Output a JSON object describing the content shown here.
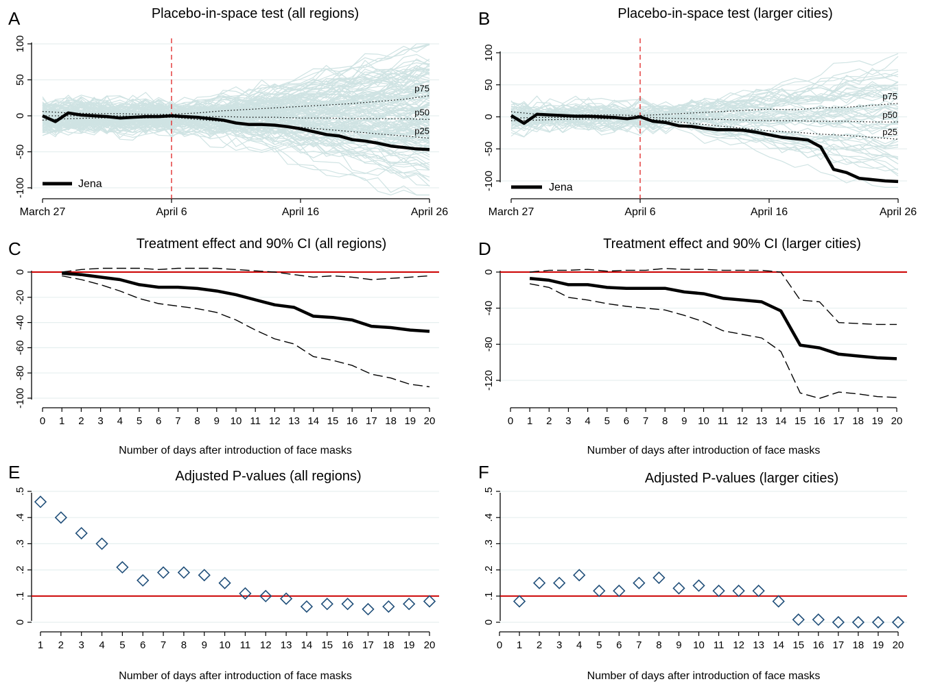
{
  "figure": {
    "colors": {
      "axis": "#000000",
      "grid": "#e6efef",
      "placebo": "#cfe3e3",
      "jena": "#000000",
      "reference_line": "#cc0000",
      "intervention_line": "#e03030",
      "pvalue_marker": "#1f4e79"
    }
  },
  "chart_data": [
    {
      "panel": "A",
      "type": "line",
      "title": "Placebo-in-space test (all regions)",
      "xlabel": "",
      "ylabel": "",
      "xlim": [
        0,
        30
      ],
      "ylim": [
        -110,
        112
      ],
      "x_ticks": [
        {
          "x": 0,
          "label": "March 27"
        },
        {
          "x": 10,
          "label": "April 6"
        },
        {
          "x": 20,
          "label": "April 16"
        },
        {
          "x": 30,
          "label": "April 26"
        }
      ],
      "y_ticks": [
        100,
        50,
        0,
        -50,
        -100
      ],
      "intervention_x": 10,
      "percentile_labels": [
        "p75",
        "p50",
        "p25"
      ],
      "legend": {
        "label": "Jena",
        "position": "bottom-left"
      },
      "placebo_count": 140,
      "placebo_spread_pre": 28,
      "placebo_spread_post": 95,
      "grid": true,
      "series": [
        {
          "name": "Jena",
          "x": [
            0,
            1,
            2,
            3,
            4,
            5,
            6,
            7,
            8,
            9,
            10,
            11,
            12,
            13,
            14,
            15,
            16,
            17,
            18,
            19,
            20,
            21,
            22,
            23,
            24,
            25,
            26,
            27,
            28,
            29,
            30
          ],
          "values": [
            0,
            -8,
            4,
            1,
            0,
            -1,
            -3,
            -2,
            -1,
            -1,
            0,
            -1,
            -2,
            -4,
            -6,
            -10,
            -12,
            -12,
            -13,
            -15,
            -18,
            -22,
            -26,
            -28,
            -33,
            -35,
            -38,
            -42,
            -44,
            -46,
            -47
          ]
        },
        {
          "name": "p75",
          "x": [
            0,
            2,
            4,
            6,
            8,
            10,
            12,
            14,
            16,
            18,
            20,
            22,
            24,
            26,
            28,
            30
          ],
          "values": [
            6,
            4,
            3,
            3,
            2,
            2,
            4,
            7,
            9,
            11,
            13,
            15,
            17,
            20,
            23,
            28
          ]
        },
        {
          "name": "p50",
          "x": [
            0,
            2,
            4,
            6,
            8,
            10,
            12,
            14,
            16,
            18,
            20,
            22,
            24,
            26,
            28,
            30
          ],
          "values": [
            0,
            0,
            0,
            0,
            -1,
            0,
            -1,
            -1,
            -2,
            -2,
            -3,
            -3,
            -4,
            -4,
            -4,
            -5
          ]
        },
        {
          "name": "p25",
          "x": [
            0,
            2,
            4,
            6,
            8,
            10,
            12,
            14,
            16,
            18,
            20,
            22,
            24,
            26,
            28,
            30
          ],
          "values": [
            -6,
            -4,
            -3,
            -3,
            -3,
            -2,
            -5,
            -8,
            -11,
            -14,
            -16,
            -19,
            -22,
            -25,
            -28,
            -31
          ]
        }
      ]
    },
    {
      "panel": "B",
      "type": "line",
      "title": "Placebo-in-space test (larger cities)",
      "xlabel": "",
      "ylabel": "",
      "xlim": [
        0,
        30
      ],
      "ylim": [
        -117,
        112
      ],
      "x_ticks": [
        {
          "x": 0,
          "label": "March 27"
        },
        {
          "x": 10,
          "label": "April 6"
        },
        {
          "x": 20,
          "label": "April 16"
        },
        {
          "x": 30,
          "label": "April 26"
        }
      ],
      "y_ticks": [
        100,
        50,
        0,
        -50,
        -100
      ],
      "intervention_x": 10,
      "percentile_labels": [
        "p75",
        "p50",
        "p25"
      ],
      "legend": {
        "label": "Jena",
        "position": "bottom-left"
      },
      "placebo_count": 60,
      "placebo_spread_pre": 30,
      "placebo_spread_post": 105,
      "grid": true,
      "series": [
        {
          "name": "Jena",
          "x": [
            0,
            1,
            2,
            3,
            4,
            5,
            6,
            7,
            8,
            9,
            10,
            11,
            12,
            13,
            14,
            15,
            16,
            17,
            18,
            19,
            20,
            21,
            22,
            23,
            24,
            25,
            26,
            27,
            28,
            29,
            30
          ],
          "values": [
            2,
            -10,
            4,
            3,
            2,
            1,
            1,
            0,
            -1,
            -3,
            0,
            -7,
            -9,
            -14,
            -15,
            -18,
            -20,
            -20,
            -21,
            -24,
            -28,
            -32,
            -34,
            -36,
            -47,
            -82,
            -87,
            -96,
            -98,
            -100,
            -101
          ]
        },
        {
          "name": "p75",
          "x": [
            0,
            2,
            4,
            6,
            8,
            10,
            12,
            14,
            16,
            18,
            20,
            22,
            24,
            26,
            28,
            30
          ],
          "values": [
            8,
            4,
            3,
            3,
            3,
            2,
            4,
            6,
            8,
            10,
            12,
            11,
            14,
            15,
            18,
            21
          ]
        },
        {
          "name": "p50",
          "x": [
            0,
            2,
            4,
            6,
            8,
            10,
            12,
            14,
            16,
            18,
            20,
            22,
            24,
            26,
            28,
            30
          ],
          "values": [
            -2,
            -1,
            -1,
            -1,
            -1,
            0,
            -2,
            -3,
            -4,
            -5,
            -6,
            -6,
            -7,
            -7,
            -8,
            -8
          ]
        },
        {
          "name": "p25",
          "x": [
            0,
            2,
            4,
            6,
            8,
            10,
            12,
            14,
            16,
            18,
            20,
            22,
            24,
            26,
            28,
            30
          ],
          "values": [
            -6,
            -5,
            -4,
            -3,
            -3,
            -2,
            -6,
            -10,
            -14,
            -18,
            -22,
            -24,
            -27,
            -29,
            -32,
            -35
          ]
        }
      ]
    },
    {
      "panel": "C",
      "type": "line",
      "title": "Treatment effect and 90% CI (all regions)",
      "xlabel": "Number of days after introduction of face masks",
      "ylabel": "",
      "xlim": [
        0,
        20
      ],
      "ylim": [
        -108,
        0
      ],
      "x_ticks": [
        0,
        1,
        2,
        3,
        4,
        5,
        6,
        7,
        8,
        9,
        10,
        11,
        12,
        13,
        14,
        15,
        16,
        17,
        18,
        19,
        20
      ],
      "y_ticks": [
        0,
        -20,
        -40,
        -60,
        -80,
        -100
      ],
      "reference_y": 0,
      "grid": true,
      "series": [
        {
          "name": "",
          "role": "effect",
          "x": [
            1,
            2,
            3,
            4,
            5,
            6,
            7,
            8,
            9,
            10,
            11,
            12,
            13,
            14,
            15,
            16,
            17,
            18,
            19,
            20
          ],
          "values": [
            -1,
            -2,
            -4,
            -6,
            -10,
            -12,
            -12,
            -13,
            -15,
            -18,
            -22,
            -26,
            -28,
            -35,
            -36,
            -38,
            -43,
            -44,
            -46,
            -47
          ]
        },
        {
          "name": "",
          "role": "ci_upper",
          "x": [
            1,
            2,
            3,
            4,
            5,
            6,
            7,
            8,
            9,
            10,
            11,
            12,
            13,
            14,
            15,
            16,
            17,
            18,
            19,
            20
          ],
          "values": [
            0,
            2,
            3,
            3,
            3,
            2,
            3,
            3,
            3,
            2,
            1,
            0,
            -2,
            -4,
            -3,
            -4,
            -6,
            -5,
            -4,
            -3
          ]
        },
        {
          "name": "",
          "role": "ci_lower",
          "x": [
            1,
            2,
            3,
            4,
            5,
            6,
            7,
            8,
            9,
            10,
            11,
            12,
            13,
            14,
            15,
            16,
            17,
            18,
            19,
            20
          ],
          "values": [
            -3,
            -6,
            -10,
            -15,
            -21,
            -25,
            -27,
            -29,
            -32,
            -38,
            -46,
            -53,
            -57,
            -67,
            -70,
            -74,
            -81,
            -84,
            -89,
            -91
          ]
        }
      ]
    },
    {
      "panel": "D",
      "type": "line",
      "title": "Treatment effect and 90% CI (larger cities)",
      "xlabel": "Number of days after introduction of face masks",
      "ylabel": "",
      "xlim": [
        0,
        20
      ],
      "ylim": [
        -147,
        0
      ],
      "x_ticks": [
        0,
        1,
        2,
        3,
        4,
        5,
        6,
        7,
        8,
        9,
        10,
        11,
        12,
        13,
        14,
        15,
        16,
        17,
        18,
        19,
        20
      ],
      "y_ticks": [
        0,
        -40,
        -80,
        -120
      ],
      "reference_y": 0,
      "grid": true,
      "series": [
        {
          "name": "",
          "role": "effect",
          "x": [
            1,
            2,
            3,
            4,
            5,
            6,
            7,
            8,
            9,
            10,
            11,
            12,
            13,
            14,
            15,
            16,
            17,
            18,
            19,
            20
          ],
          "values": [
            -7,
            -9,
            -14,
            -14,
            -17,
            -18,
            -18,
            -18,
            -22,
            -24,
            -29,
            -31,
            -33,
            -43,
            -81,
            -84,
            -91,
            -93,
            -95,
            -96
          ]
        },
        {
          "name": "",
          "role": "ci_upper",
          "x": [
            1,
            2,
            3,
            4,
            5,
            6,
            7,
            8,
            9,
            10,
            11,
            12,
            13,
            14,
            15,
            16,
            17,
            18,
            19,
            20
          ],
          "values": [
            0,
            2,
            2,
            3,
            1,
            2,
            2,
            4,
            3,
            3,
            2,
            2,
            2,
            0,
            -31,
            -33,
            -56,
            -57,
            -58,
            -58
          ]
        },
        {
          "name": "",
          "role": "ci_lower",
          "x": [
            1,
            2,
            3,
            4,
            5,
            6,
            7,
            8,
            9,
            10,
            11,
            12,
            13,
            14,
            15,
            16,
            17,
            18,
            19,
            20
          ],
          "values": [
            -13,
            -17,
            -28,
            -31,
            -35,
            -38,
            -40,
            -42,
            -48,
            -55,
            -65,
            -69,
            -73,
            -88,
            -134,
            -140,
            -133,
            -135,
            -138,
            -139
          ]
        }
      ]
    },
    {
      "panel": "E",
      "type": "scatter",
      "title": "Adjusted P-values (all regions)",
      "xlabel": "Number of days after introduction of face masks",
      "ylabel": "",
      "xlim": [
        0.55,
        20.35
      ],
      "ylim": [
        -0.02,
        0.55
      ],
      "x_ticks": [
        1,
        2,
        3,
        4,
        5,
        6,
        7,
        8,
        9,
        10,
        11,
        12,
        13,
        14,
        15,
        16,
        17,
        18,
        19,
        20
      ],
      "y_ticks": [
        0,
        0.1,
        0.2,
        0.3,
        0.4,
        0.5
      ],
      "y_tick_labels": [
        "0",
        ".1",
        ".2",
        ".3",
        ".4",
        ".5"
      ],
      "reference_y": 0.1,
      "grid": true,
      "series": [
        {
          "name": "",
          "x": [
            1,
            2,
            3,
            4,
            5,
            6,
            7,
            8,
            9,
            10,
            11,
            12,
            13,
            14,
            15,
            16,
            17,
            18,
            19,
            20
          ],
          "values": [
            0.46,
            0.4,
            0.34,
            0.3,
            0.21,
            0.16,
            0.19,
            0.19,
            0.18,
            0.15,
            0.11,
            0.1,
            0.09,
            0.06,
            0.07,
            0.07,
            0.05,
            0.06,
            0.07,
            0.08
          ]
        }
      ]
    },
    {
      "panel": "F",
      "type": "scatter",
      "title": "Adjusted P-values (larger cities)",
      "xlabel": "Number of days after introduction of face masks",
      "ylabel": "",
      "xlim": [
        -0.5,
        20.5
      ],
      "ylim": [
        -0.04,
        0.55
      ],
      "x_ticks": [
        0,
        1,
        2,
        3,
        4,
        5,
        6,
        7,
        8,
        9,
        10,
        11,
        12,
        13,
        14,
        15,
        16,
        17,
        18,
        19,
        20
      ],
      "y_ticks": [
        0,
        0.1,
        0.2,
        0.3,
        0.4,
        0.5
      ],
      "y_tick_labels": [
        "0",
        ".1",
        ".2",
        ".3",
        ".4",
        ".5"
      ],
      "reference_y": 0.1,
      "grid": true,
      "series": [
        {
          "name": "",
          "x": [
            1,
            2,
            3,
            4,
            5,
            6,
            7,
            8,
            9,
            10,
            11,
            12,
            13,
            14,
            15,
            16,
            17,
            18,
            19,
            20
          ],
          "values": [
            0.08,
            0.15,
            0.15,
            0.18,
            0.12,
            0.12,
            0.15,
            0.17,
            0.13,
            0.14,
            0.12,
            0.12,
            0.12,
            0.08,
            0.01,
            0.01,
            0.0,
            0.0,
            0.0,
            0.0
          ]
        }
      ]
    }
  ]
}
